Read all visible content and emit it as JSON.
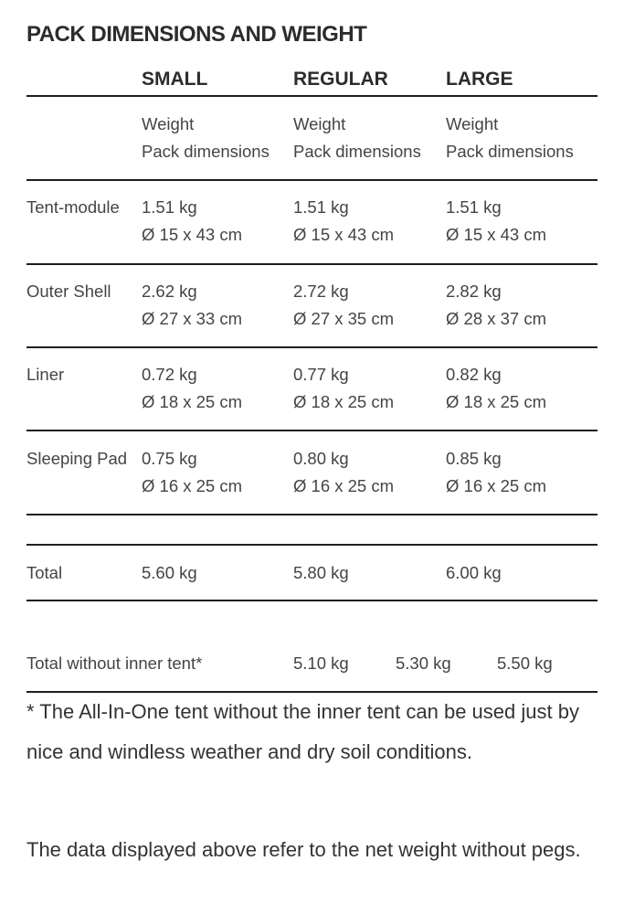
{
  "title": "PACK DIMENSIONS AND WEIGHT",
  "columns": [
    "SMALL",
    "REGULAR",
    "LARGE"
  ],
  "subheader": {
    "line1": "Weight",
    "line2": "Pack dimensions"
  },
  "rows": [
    {
      "label": "Tent-module",
      "values": [
        [
          "1.51 kg",
          "Ø 15 x 43 cm"
        ],
        [
          "1.51 kg",
          "Ø 15 x 43 cm"
        ],
        [
          "1.51 kg",
          "Ø 15 x 43 cm"
        ]
      ]
    },
    {
      "label": "Outer Shell",
      "values": [
        [
          "2.62 kg",
          "Ø 27 x 33 cm"
        ],
        [
          "2.72 kg",
          "Ø 27 x 35 cm"
        ],
        [
          "2.82 kg",
          "Ø 28 x 37 cm"
        ]
      ]
    },
    {
      "label": "Liner",
      "values": [
        [
          "0.72 kg",
          "Ø 18 x 25 cm"
        ],
        [
          "0.77 kg",
          "Ø 18 x 25 cm"
        ],
        [
          "0.82 kg",
          "Ø 18 x 25 cm"
        ]
      ]
    },
    {
      "label": "Sleeping Pad",
      "values": [
        [
          "0.75 kg",
          "Ø 16 x 25 cm"
        ],
        [
          "0.80 kg",
          "Ø 16 x 25 cm"
        ],
        [
          "0.85 kg",
          "Ø 16 x 25 cm"
        ]
      ]
    }
  ],
  "total": {
    "label": "Total",
    "values": [
      "5.60 kg",
      "5.80 kg",
      "6.00 kg"
    ]
  },
  "total_without_inner": {
    "label": "Total without inner tent*",
    "values": [
      "5.10 kg",
      "5.30 kg",
      "5.50 kg"
    ]
  },
  "notes": [
    "* The All-In-One tent without the inner tent can be used just by nice and windless weather and dry soil conditions.",
    "The data displayed above refer to the net weight without pegs."
  ]
}
